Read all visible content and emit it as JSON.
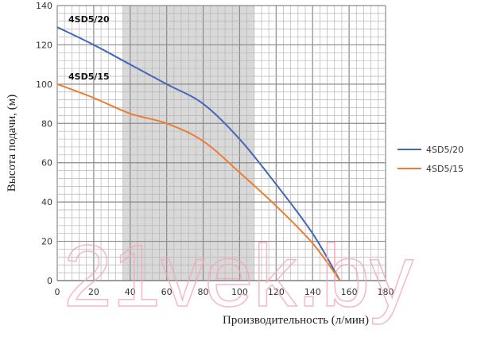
{
  "chart_data": {
    "type": "line",
    "xlabel": "Производительность (л/мин)",
    "ylabel": "Высота подачи, (м)",
    "xlim": [
      0,
      180
    ],
    "ylim": [
      0,
      140
    ],
    "xticks": [
      0,
      20,
      40,
      60,
      80,
      100,
      120,
      140,
      160,
      180
    ],
    "yticks": [
      0,
      20,
      40,
      60,
      80,
      100,
      120,
      140
    ],
    "grid": true,
    "minor_grid_step": 4,
    "shaded_range_x": [
      36,
      108
    ],
    "shaded_color": "#d9d9d9",
    "legend_position": "right",
    "series": [
      {
        "name": "4SD5/20",
        "color": "#4468b5",
        "x": [
          0,
          20,
          40,
          60,
          80,
          100,
          120,
          140,
          155
        ],
        "y": [
          129,
          120,
          110,
          100,
          90,
          72,
          49,
          24,
          0
        ]
      },
      {
        "name": "4SD5/15",
        "color": "#ed7d31",
        "x": [
          0,
          20,
          40,
          60,
          80,
          100,
          120,
          140,
          155
        ],
        "y": [
          100,
          93,
          85,
          80,
          71,
          55,
          38,
          19,
          0
        ]
      }
    ],
    "watermark": "21vek.by"
  }
}
